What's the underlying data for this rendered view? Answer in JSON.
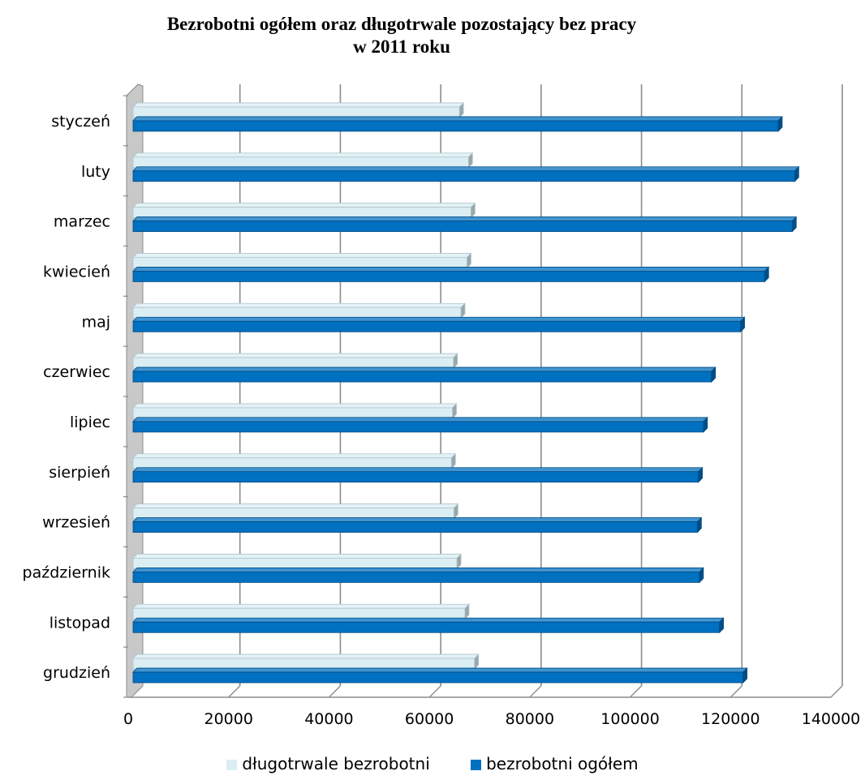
{
  "chart_data": {
    "type": "bar",
    "orientation": "horizontal",
    "title": "Bezrobotni ogółem oraz długotrwale pozostający bez pracy",
    "subtitle": "w 2011 roku",
    "categories": [
      "styczeń",
      "luty",
      "marzec",
      "kwiecień",
      "maj",
      "czerwiec",
      "lipiec",
      "sierpień",
      "wrzesień",
      "październik",
      "listopad",
      "grudzień"
    ],
    "series": [
      {
        "name": "długotrwale bezrobotni",
        "color": "#DAEEF3",
        "values": [
          66000,
          67800,
          68300,
          67500,
          66300,
          64800,
          64600,
          64400,
          64900,
          65500,
          67100,
          69000
        ]
      },
      {
        "name": "bezrobotni ogółem",
        "color": "#0070C0",
        "values": [
          129500,
          132800,
          132300,
          126800,
          122000,
          116200,
          114600,
          113600,
          113400,
          113800,
          117800,
          122500
        ]
      }
    ],
    "xlim": [
      0,
      140000
    ],
    "xticks": [
      "0",
      "20000",
      "40000",
      "60000",
      "80000",
      "100000",
      "120000",
      "140000"
    ],
    "grid": true,
    "legend_position": "bottom",
    "style": "3d-clustered-bar"
  }
}
